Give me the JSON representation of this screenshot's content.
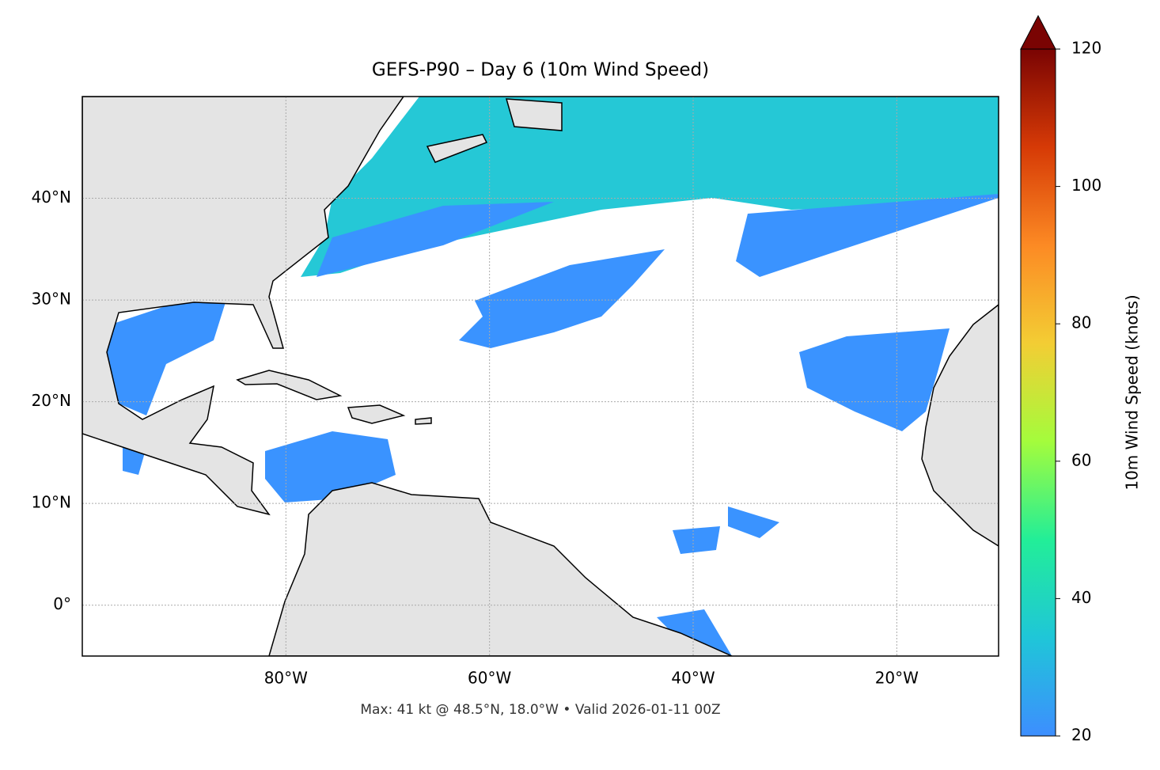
{
  "chart_data": {
    "type": "map",
    "title": "GEFS-P90 – Day 6 (10m Wind Speed)",
    "footnote": "Max: 41 kt @ 48.5°N, 18.0°W • Valid 2026-01-11 00Z",
    "xlim": [
      -100,
      -10
    ],
    "ylim": [
      -5,
      50
    ],
    "xticks": [
      {
        "value": -80,
        "label": "80°W"
      },
      {
        "value": -60,
        "label": "60°W"
      },
      {
        "value": -40,
        "label": "40°W"
      },
      {
        "value": -20,
        "label": "20°W"
      }
    ],
    "yticks": [
      {
        "value": 0,
        "label": "0°"
      },
      {
        "value": 10,
        "label": "10°N"
      },
      {
        "value": 20,
        "label": "20°N"
      },
      {
        "value": 30,
        "label": "30°N"
      },
      {
        "value": 40,
        "label": "40°N"
      }
    ],
    "grid": true,
    "colorbar": {
      "label": "10m Wind Speed (knots)",
      "lim": [
        20,
        120
      ],
      "ticks": [
        20,
        40,
        60,
        80,
        100,
        120
      ],
      "colors": [
        "#3d8eff",
        "#1fc6d8",
        "#22ee98",
        "#a4fc3c",
        "#f3cd34",
        "#fc8a24",
        "#d63a06",
        "#7a0403"
      ]
    }
  }
}
